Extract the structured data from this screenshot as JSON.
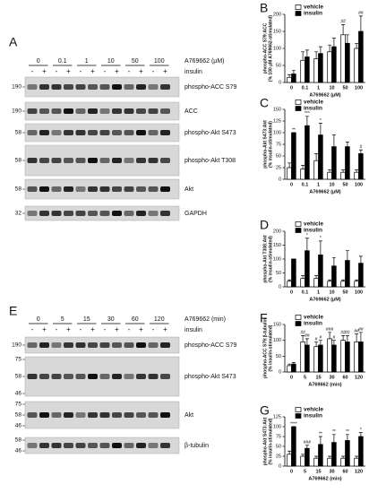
{
  "blots": [
    {
      "panel": "A",
      "treatment": "A769662 (µM)",
      "doses": [
        "0",
        "0.1",
        "1",
        "10",
        "50",
        "100"
      ],
      "insulin_label": "insulin",
      "signs": [
        "-",
        "+"
      ],
      "rows": [
        {
          "label": "phospho-ACC S79",
          "markers": [
            "190"
          ]
        },
        {
          "label": "ACC",
          "markers": [
            "190"
          ]
        },
        {
          "label": "phospho-Akt S473",
          "markers": [
            "58"
          ]
        },
        {
          "label": "phospho-Akt T308",
          "markers": [
            "58"
          ]
        },
        {
          "label": "Akt",
          "markers": [
            "58"
          ]
        },
        {
          "label": "GAPDH",
          "markers": [
            "32"
          ]
        }
      ]
    },
    {
      "panel": "E",
      "treatment": "A769662 (min)",
      "doses": [
        "0",
        "5",
        "15",
        "30",
        "60",
        "120"
      ],
      "insulin_label": "insulin",
      "signs": [
        "-",
        "+"
      ],
      "rows": [
        {
          "label": "phospho-ACC S79",
          "markers": [
            "190"
          ]
        },
        {
          "label": "phospho-Akt S473",
          "markers": [
            "75",
            "58",
            "46"
          ]
        },
        {
          "label": "Akt",
          "markers": [
            "75",
            "58",
            "46"
          ]
        },
        {
          "label": "β-tubulin",
          "markers": [
            "58",
            "46"
          ]
        }
      ]
    }
  ],
  "chart_data": [
    {
      "type": "bar",
      "panel": "B",
      "ylabel": [
        "phospho-ACC S79:ACC",
        "(% 100 µM A769662-stimulated)"
      ],
      "xlabel": "A769662 (µM)",
      "categories": [
        "0",
        "0.1",
        "1",
        "10",
        "50",
        "100"
      ],
      "ylim": [
        0,
        200
      ],
      "yticks": [
        0,
        50,
        100,
        150,
        200
      ],
      "series": [
        {
          "name": "vehicle",
          "color": "#ffffff",
          "values": [
            15,
            65,
            70,
            90,
            140,
            100
          ],
          "errors": [
            8,
            25,
            20,
            20,
            30,
            15
          ],
          "significance": [
            null,
            null,
            null,
            null,
            "##",
            null
          ]
        },
        {
          "name": "insulin",
          "color": "#000000",
          "values": [
            25,
            75,
            85,
            105,
            115,
            150
          ],
          "errors": [
            10,
            20,
            20,
            25,
            25,
            45
          ],
          "significance": [
            null,
            null,
            null,
            null,
            null,
            "##"
          ]
        }
      ]
    },
    {
      "type": "bar",
      "panel": "C",
      "ylabel": [
        "phospho-Akt S473:Akt",
        "(% insulin-stimulated)"
      ],
      "xlabel": "A769662 (µM)",
      "categories": [
        "0",
        "0.1",
        "1",
        "10",
        "50",
        "100"
      ],
      "ylim": [
        0,
        150
      ],
      "yticks": [
        0,
        25,
        50,
        75,
        100,
        125,
        150
      ],
      "series": [
        {
          "name": "vehicle",
          "color": "#ffffff",
          "values": [
            25,
            22,
            40,
            15,
            15,
            15
          ],
          "errors": [
            10,
            8,
            15,
            5,
            5,
            5
          ],
          "significance": [
            null,
            null,
            null,
            null,
            null,
            null
          ]
        },
        {
          "name": "insulin",
          "color": "#000000",
          "values": [
            100,
            115,
            95,
            70,
            70,
            55
          ],
          "errors": [
            0,
            20,
            25,
            25,
            10,
            8
          ],
          "significance": [
            "**",
            "***",
            "*",
            null,
            null,
            "#"
          ]
        }
      ]
    },
    {
      "type": "bar",
      "panel": "D",
      "ylabel": [
        "phospho-Akt T308:Akt",
        "(% insulin-stimulated)"
      ],
      "xlabel": "A769662 (µM)",
      "categories": [
        "0",
        "0.1",
        "1",
        "10",
        "50",
        "100"
      ],
      "ylim": [
        0,
        200
      ],
      "yticks": [
        0,
        50,
        100,
        150,
        200
      ],
      "series": [
        {
          "name": "vehicle",
          "color": "#ffffff",
          "values": [
            20,
            30,
            30,
            20,
            20,
            20
          ],
          "errors": [
            5,
            10,
            10,
            5,
            5,
            5
          ],
          "significance": [
            null,
            null,
            null,
            null,
            null,
            null
          ]
        },
        {
          "name": "insulin",
          "color": "#000000",
          "values": [
            100,
            130,
            115,
            75,
            95,
            85
          ],
          "errors": [
            0,
            45,
            50,
            30,
            35,
            25
          ],
          "significance": [
            null,
            "*",
            "*",
            null,
            null,
            null
          ]
        }
      ]
    },
    {
      "type": "bar",
      "panel": "F",
      "ylabel": [
        "phospho-ACC S79:β-tubulin",
        "(% insulin-stimulated)"
      ],
      "xlabel": "A769662 (min)",
      "categories": [
        "0",
        "5",
        "15",
        "30",
        "60",
        "120"
      ],
      "ylim": [
        0,
        150
      ],
      "yticks": [
        0,
        50,
        100,
        150
      ],
      "series": [
        {
          "name": "vehicle",
          "color": "#ffffff",
          "values": [
            20,
            95,
            80,
            105,
            100,
            95
          ],
          "errors": [
            5,
            20,
            15,
            20,
            15,
            25
          ],
          "significance": [
            null,
            "##",
            "#",
            "###",
            "##",
            "##"
          ]
        },
        {
          "name": "insulin",
          "color": "#000000",
          "values": [
            25,
            85,
            85,
            85,
            95,
            95
          ],
          "errors": [
            5,
            20,
            15,
            15,
            20,
            30
          ],
          "significance": [
            null,
            "##",
            "#",
            "#",
            "##",
            "##"
          ]
        }
      ]
    },
    {
      "type": "bar",
      "panel": "G",
      "ylabel": [
        "phospho-Akt S473:Akt",
        "(% insulin-stimulated)"
      ],
      "xlabel": "A769662 (min)",
      "categories": [
        "0",
        "5",
        "15",
        "30",
        "60",
        "120"
      ],
      "ylim": [
        0,
        125
      ],
      "yticks": [
        0,
        25,
        50,
        75,
        100,
        125
      ],
      "series": [
        {
          "name": "vehicle",
          "color": "#ffffff",
          "values": [
            30,
            25,
            20,
            20,
            20,
            20
          ],
          "errors": [
            8,
            5,
            5,
            5,
            5,
            5
          ],
          "significance": [
            null,
            null,
            null,
            null,
            null,
            null
          ]
        },
        {
          "name": "insulin",
          "color": "#000000",
          "values": [
            100,
            45,
            55,
            60,
            65,
            75
          ],
          "errors": [
            0,
            8,
            20,
            20,
            15,
            10
          ],
          "significance": [
            "****",
            "###",
            "**",
            "**",
            "**",
            "*"
          ]
        }
      ]
    }
  ]
}
